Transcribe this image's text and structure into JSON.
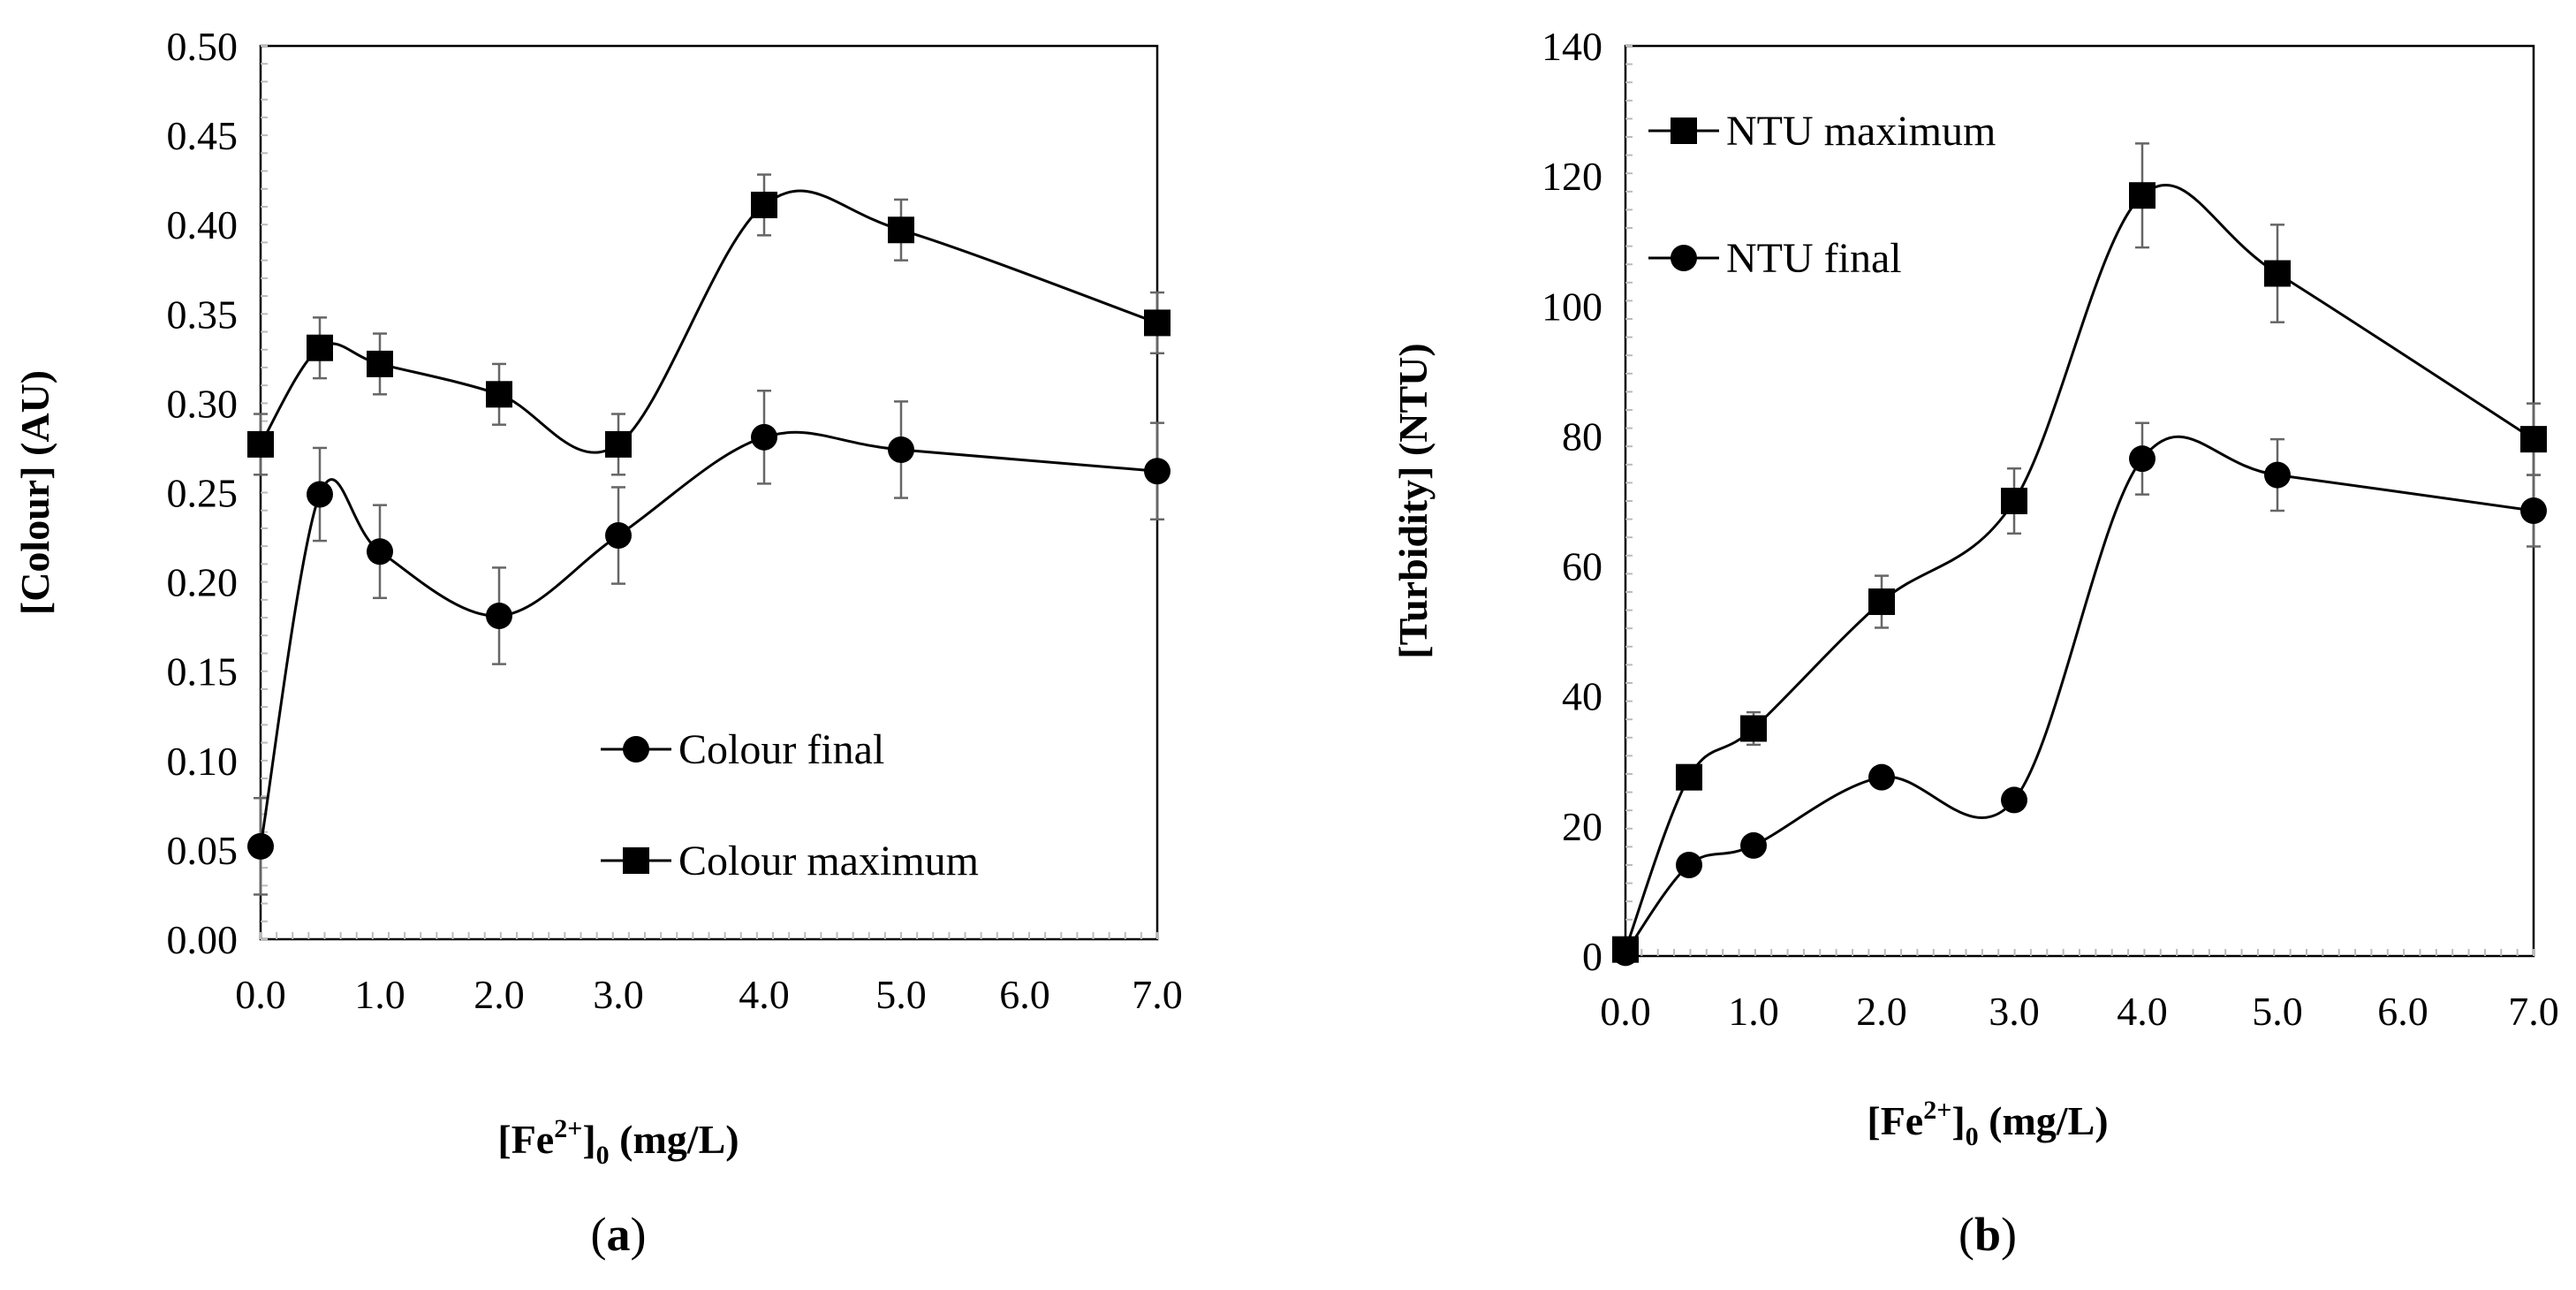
{
  "chart_data": [
    {
      "type": "line",
      "panel_prefix": "(",
      "panel_letter": "a",
      "panel_suffix": ")",
      "x": [
        0.0,
        0.5,
        1.0,
        2.0,
        3.0,
        4.0,
        5.0,
        7.0
      ],
      "x_axis_kind": "category",
      "xtick_labels": [
        "0.0",
        "1.0",
        "2.0",
        "3.0",
        "4.0",
        "5.0",
        "6.0",
        "7.0"
      ],
      "xtick_label_values": [
        0.0,
        1.0,
        2.0,
        3.0,
        4.0,
        5.0,
        6.0,
        7.0
      ],
      "ylim": [
        0,
        0.5
      ],
      "ytick_labels": [
        "0.00",
        "0.05",
        "0.10",
        "0.15",
        "0.20",
        "0.25",
        "0.30",
        "0.35",
        "0.40",
        "0.45",
        "0.50"
      ],
      "xlabel": {
        "pre": "[Fe",
        "sup": "2+",
        "mid": "]",
        "sub": "0",
        "post": " (mg/L)"
      },
      "ylabel": "[Colour] (AU)",
      "legend_position": "bottom-right",
      "series": [
        {
          "name": "Colour final",
          "marker": "circle",
          "values": [
            0.052,
            0.249,
            0.217,
            0.181,
            0.226,
            0.281,
            0.274,
            0.262
          ],
          "errors": [
            0.027,
            0.026,
            0.026,
            0.027,
            0.027,
            0.026,
            0.027,
            0.027
          ]
        },
        {
          "name": "Colour maximum",
          "marker": "square",
          "values": [
            0.277,
            0.331,
            0.322,
            0.305,
            0.277,
            0.411,
            0.397,
            0.345
          ],
          "errors": [
            0.017,
            0.017,
            0.017,
            0.017,
            0.017,
            0.017,
            0.017,
            0.017
          ]
        }
      ]
    },
    {
      "type": "line",
      "panel_prefix": "(",
      "panel_letter": "b",
      "panel_suffix": ")",
      "x": [
        0.0,
        0.5,
        1.0,
        2.0,
        3.0,
        4.0,
        5.0,
        7.0
      ],
      "x_axis_kind": "category",
      "xtick_labels": [
        "0.0",
        "1.0",
        "2.0",
        "3.0",
        "4.0",
        "5.0",
        "6.0",
        "7.0"
      ],
      "xtick_label_values": [
        0.0,
        1.0,
        2.0,
        3.0,
        4.0,
        5.0,
        6.0,
        7.0
      ],
      "ylim": [
        0,
        140
      ],
      "ytick_labels": [
        "0",
        "20",
        "40",
        "60",
        "80",
        "100",
        "120",
        "140"
      ],
      "xlabel": {
        "pre": "[Fe",
        "sup": "2+",
        "mid": "]",
        "sub": "0",
        "post": " (mg/L)"
      },
      "ylabel": "[Turbidity] (NTU)",
      "legend_position": "top-left",
      "series": [
        {
          "name": "NTU maximum",
          "marker": "square",
          "values": [
            1.0,
            27.5,
            35.0,
            54.5,
            70.0,
            117.0,
            105.0,
            79.5
          ],
          "errors": [
            1.5,
            1.5,
            2.5,
            4.0,
            5.0,
            8.0,
            7.5,
            5.5
          ]
        },
        {
          "name": "NTU final",
          "marker": "circle",
          "values": [
            0.5,
            14.0,
            17.0,
            27.5,
            24.0,
            76.5,
            74.0,
            68.5
          ],
          "errors": [
            1.0,
            1.0,
            1.5,
            1.5,
            1.5,
            5.5,
            5.5,
            5.5
          ]
        }
      ]
    }
  ]
}
